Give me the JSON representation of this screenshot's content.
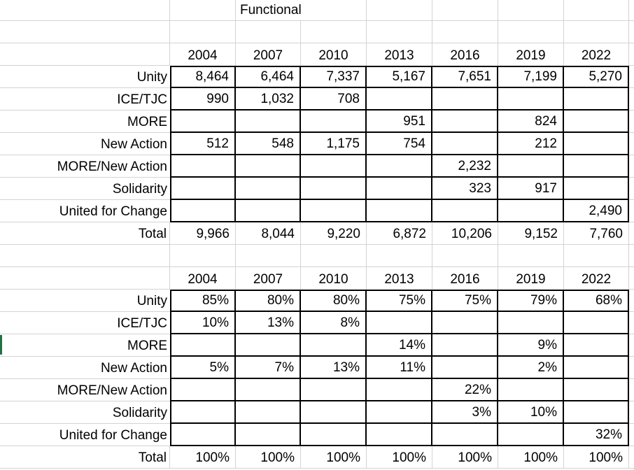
{
  "title": "Functional",
  "years": [
    "2004",
    "2007",
    "2010",
    "2013",
    "2016",
    "2019",
    "2022"
  ],
  "table1": {
    "rows": [
      {
        "label": "Unity",
        "values": [
          "8,464",
          "6,464",
          "7,337",
          "5,167",
          "7,651",
          "7,199",
          "5,270"
        ]
      },
      {
        "label": "ICE/TJC",
        "values": [
          "990",
          "1,032",
          "708",
          "",
          "",
          "",
          ""
        ]
      },
      {
        "label": "MORE",
        "values": [
          "",
          "",
          "",
          "951",
          "",
          "824",
          ""
        ]
      },
      {
        "label": "New Action",
        "values": [
          "512",
          "548",
          "1,175",
          "754",
          "",
          "212",
          ""
        ]
      },
      {
        "label": "MORE/New Action",
        "values": [
          "",
          "",
          "",
          "",
          "2,232",
          "",
          ""
        ]
      },
      {
        "label": "Solidarity",
        "values": [
          "",
          "",
          "",
          "",
          "323",
          "917",
          ""
        ]
      },
      {
        "label": "United for Change",
        "values": [
          "",
          "",
          "",
          "",
          "",
          "",
          "2,490"
        ]
      }
    ],
    "total": {
      "label": "Total",
      "values": [
        "9,966",
        "8,044",
        "9,220",
        "6,872",
        "10,206",
        "9,152",
        "7,760"
      ],
      "has_error_indicators": true
    }
  },
  "table2": {
    "rows": [
      {
        "label": "Unity",
        "values": [
          "85%",
          "80%",
          "80%",
          "75%",
          "75%",
          "79%",
          "68%"
        ]
      },
      {
        "label": "ICE/TJC",
        "values": [
          "10%",
          "13%",
          "8%",
          "",
          "",
          "",
          ""
        ]
      },
      {
        "label": "MORE",
        "values": [
          "",
          "",
          "",
          "14%",
          "",
          "9%",
          ""
        ]
      },
      {
        "label": "New Action",
        "values": [
          "5%",
          "7%",
          "13%",
          "11%",
          "",
          "2%",
          ""
        ]
      },
      {
        "label": "MORE/New Action",
        "values": [
          "",
          "",
          "",
          "",
          "22%",
          "",
          ""
        ]
      },
      {
        "label": "Solidarity",
        "values": [
          "",
          "",
          "",
          "",
          "3%",
          "10%",
          ""
        ]
      },
      {
        "label": "United for Change",
        "values": [
          "",
          "",
          "",
          "",
          "",
          "",
          "32%"
        ]
      }
    ],
    "total": {
      "label": "Total",
      "values": [
        "100%",
        "100%",
        "100%",
        "100%",
        "100%",
        "100%",
        "100%"
      ],
      "has_error_indicators": false
    }
  },
  "colors": {
    "gridline": "#d3d3d3",
    "cell_border": "#000000",
    "error_indicator": "#1f7244",
    "row_marker": "#1f7244"
  }
}
